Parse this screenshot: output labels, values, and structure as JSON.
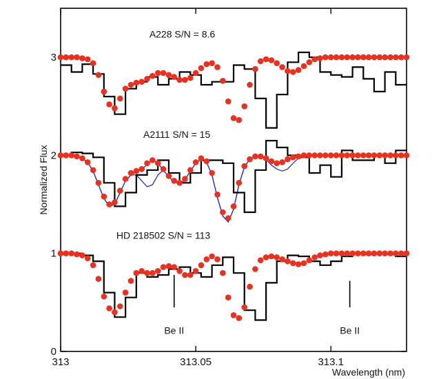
{
  "chart_data": {
    "type": "line",
    "xlabel": "Wavelength (nm)",
    "ylabel": "Normalized Flux",
    "xlim": [
      313.0,
      313.128
    ],
    "ylim": [
      0,
      3.5
    ],
    "grid": false,
    "x_ticks": [
      313.0,
      313.05,
      313.1
    ],
    "x_tick_labels": [
      "313",
      "313.05",
      "313.1"
    ],
    "y_ticks": [
      0,
      1,
      2,
      3
    ],
    "y_tick_labels": [
      "0",
      "1",
      "2",
      "3"
    ],
    "colors": {
      "observed": "#000000",
      "model_dots": "#e8311f",
      "blue_model": "#2a2ad0"
    },
    "annotations": [
      {
        "text": "A228 S/N = 8.6",
        "x": 313.045,
        "y": 3.2
      },
      {
        "text": "A2111 S/N = 15",
        "x": 313.043,
        "y": 2.18
      },
      {
        "text": "HD 218502 S/N = 113",
        "x": 313.038,
        "y": 1.15
      },
      {
        "text": "Be II",
        "x": 313.042,
        "y": 0.18,
        "marker_y": [
          0.45,
          0.78
        ]
      },
      {
        "text": "Be II",
        "x": 313.107,
        "y": 0.18,
        "marker_y": [
          0.45,
          0.72
        ]
      }
    ],
    "series": [
      {
        "name": "A228 observed",
        "style": "step",
        "x": [
          313.0,
          313.004,
          313.008,
          313.012,
          313.016,
          313.02,
          313.024,
          313.028,
          313.032,
          313.036,
          313.04,
          313.044,
          313.048,
          313.052,
          313.056,
          313.06,
          313.064,
          313.068,
          313.072,
          313.076,
          313.08,
          313.084,
          313.088,
          313.092,
          313.096,
          313.1,
          313.104,
          313.108,
          313.112,
          313.116,
          313.12,
          313.124
        ],
        "y": [
          2.92,
          2.85,
          2.93,
          2.83,
          2.6,
          2.42,
          2.68,
          2.75,
          2.8,
          2.72,
          2.78,
          2.85,
          2.82,
          2.72,
          2.75,
          2.75,
          2.92,
          2.88,
          2.58,
          2.28,
          2.62,
          2.95,
          3.05,
          3.0,
          2.85,
          2.82,
          2.8,
          2.9,
          2.78,
          2.65,
          2.85,
          2.72
        ]
      },
      {
        "name": "A228 model",
        "style": "dots",
        "x": [
          313.0,
          313.002,
          313.004,
          313.006,
          313.008,
          313.01,
          313.012,
          313.014,
          313.016,
          313.018,
          313.02,
          313.022,
          313.024,
          313.026,
          313.028,
          313.03,
          313.032,
          313.034,
          313.036,
          313.038,
          313.04,
          313.042,
          313.044,
          313.046,
          313.048,
          313.05,
          313.052,
          313.054,
          313.056,
          313.058,
          313.06,
          313.062,
          313.064,
          313.066,
          313.068,
          313.07,
          313.072,
          313.074,
          313.076,
          313.078,
          313.08,
          313.082,
          313.084,
          313.086,
          313.088,
          313.09,
          313.092,
          313.094,
          313.096,
          313.098,
          313.1,
          313.102,
          313.104,
          313.106,
          313.108,
          313.11,
          313.112,
          313.114,
          313.116,
          313.118,
          313.12,
          313.122,
          313.124,
          313.126,
          313.128
        ],
        "y": [
          3.0,
          3.0,
          3.0,
          3.0,
          2.99,
          2.98,
          2.94,
          2.82,
          2.65,
          2.52,
          2.48,
          2.58,
          2.68,
          2.72,
          2.74,
          2.75,
          2.78,
          2.81,
          2.84,
          2.84,
          2.82,
          2.8,
          2.77,
          2.77,
          2.79,
          2.84,
          2.89,
          2.93,
          2.94,
          2.9,
          2.76,
          2.55,
          2.38,
          2.36,
          2.5,
          2.72,
          2.88,
          2.96,
          2.98,
          2.97,
          2.94,
          2.9,
          2.86,
          2.85,
          2.87,
          2.91,
          2.95,
          2.98,
          2.99,
          3.0,
          3.0,
          3.0,
          3.0,
          3.0,
          3.0,
          3.0,
          3.0,
          3.0,
          3.0,
          3.0,
          3.0,
          3.0,
          3.0,
          3.0,
          3.0
        ]
      },
      {
        "name": "A2111 observed",
        "style": "step",
        "x": [
          313.0,
          313.004,
          313.008,
          313.012,
          313.016,
          313.02,
          313.024,
          313.028,
          313.032,
          313.036,
          313.04,
          313.044,
          313.048,
          313.052,
          313.056,
          313.06,
          313.064,
          313.068,
          313.072,
          313.076,
          313.08,
          313.084,
          313.088,
          313.092,
          313.096,
          313.1,
          313.104,
          313.108,
          313.112,
          313.116,
          313.12,
          313.124
        ],
        "y": [
          2.0,
          2.03,
          2.02,
          1.98,
          1.72,
          1.48,
          1.62,
          1.8,
          1.85,
          1.95,
          1.82,
          1.72,
          1.82,
          1.95,
          1.95,
          1.92,
          1.62,
          1.42,
          1.85,
          2.15,
          2.08,
          2.0,
          1.98,
          1.82,
          1.9,
          1.78,
          2.05,
          1.95,
          1.95,
          2.0,
          1.92,
          2.05
        ]
      },
      {
        "name": "A2111 model",
        "style": "dots",
        "x": [
          313.0,
          313.002,
          313.004,
          313.006,
          313.008,
          313.01,
          313.012,
          313.014,
          313.016,
          313.018,
          313.02,
          313.022,
          313.024,
          313.026,
          313.028,
          313.03,
          313.032,
          313.034,
          313.036,
          313.038,
          313.04,
          313.042,
          313.044,
          313.046,
          313.048,
          313.05,
          313.052,
          313.054,
          313.056,
          313.058,
          313.06,
          313.062,
          313.064,
          313.066,
          313.068,
          313.07,
          313.072,
          313.074,
          313.076,
          313.078,
          313.08,
          313.082,
          313.084,
          313.086,
          313.088,
          313.09,
          313.092,
          313.094,
          313.096,
          313.098,
          313.1,
          313.102,
          313.104,
          313.106,
          313.108,
          313.11,
          313.112,
          313.114,
          313.116,
          313.118,
          313.12,
          313.122,
          313.124,
          313.126,
          313.128
        ],
        "y": [
          2.0,
          2.0,
          2.0,
          1.99,
          1.97,
          1.93,
          1.85,
          1.72,
          1.58,
          1.5,
          1.52,
          1.64,
          1.76,
          1.82,
          1.84,
          1.86,
          1.92,
          1.95,
          1.92,
          1.86,
          1.79,
          1.74,
          1.72,
          1.76,
          1.85,
          1.93,
          1.97,
          1.94,
          1.82,
          1.6,
          1.42,
          1.36,
          1.48,
          1.72,
          1.89,
          1.96,
          1.99,
          1.99,
          1.97,
          1.94,
          1.92,
          1.93,
          1.96,
          1.98,
          1.99,
          2.0,
          2.0,
          2.0,
          2.0,
          2.0,
          2.0,
          2.0,
          2.0,
          2.0,
          2.0,
          2.0,
          2.0,
          2.0,
          2.0,
          2.0,
          2.0,
          2.0,
          2.0,
          2.0,
          2.0
        ]
      },
      {
        "name": "A2111 Be model (shallow)",
        "style": "line",
        "x": [
          313.0,
          313.002,
          313.004,
          313.006,
          313.008,
          313.01,
          313.012,
          313.014,
          313.016,
          313.018,
          313.02,
          313.022,
          313.024,
          313.026,
          313.028,
          313.03,
          313.032,
          313.034,
          313.036,
          313.038,
          313.04,
          313.042,
          313.044,
          313.046,
          313.048,
          313.05,
          313.052,
          313.054,
          313.056,
          313.058,
          313.06,
          313.062,
          313.064,
          313.066,
          313.068,
          313.07,
          313.072,
          313.074,
          313.076,
          313.078,
          313.08,
          313.082,
          313.084,
          313.086,
          313.088,
          313.09,
          313.092,
          313.094,
          313.096,
          313.098,
          313.1,
          313.102,
          313.104,
          313.106,
          313.108,
          313.11,
          313.112,
          313.114,
          313.116,
          313.118,
          313.12,
          313.122,
          313.124,
          313.126,
          313.128
        ],
        "y": [
          2.0,
          2.0,
          2.0,
          1.99,
          1.97,
          1.93,
          1.84,
          1.7,
          1.56,
          1.48,
          1.5,
          1.62,
          1.74,
          1.8,
          1.83,
          1.85,
          1.91,
          1.95,
          1.92,
          1.85,
          1.78,
          1.73,
          1.71,
          1.75,
          1.84,
          1.92,
          1.96,
          1.93,
          1.8,
          1.57,
          1.38,
          1.32,
          1.45,
          1.7,
          1.88,
          1.96,
          1.99,
          1.99,
          1.97,
          1.94,
          1.91,
          1.92,
          1.95,
          1.98,
          1.99,
          2.0,
          2.0,
          2.0,
          2.0,
          2.0,
          2.0,
          2.0,
          2.0,
          2.0,
          2.0,
          2.0,
          2.0,
          2.0,
          2.0,
          2.0,
          2.0,
          2.0,
          2.0,
          2.0,
          2.0
        ]
      },
      {
        "name": "A2111 Be model (deep)",
        "style": "line",
        "x": [
          313.0,
          313.002,
          313.004,
          313.006,
          313.008,
          313.01,
          313.012,
          313.014,
          313.016,
          313.018,
          313.02,
          313.022,
          313.024,
          313.026,
          313.028,
          313.03,
          313.032,
          313.034,
          313.036,
          313.038,
          313.04,
          313.042,
          313.044,
          313.046,
          313.048,
          313.05,
          313.052,
          313.054,
          313.056,
          313.058,
          313.06,
          313.062,
          313.064,
          313.066,
          313.068,
          313.07,
          313.072,
          313.074,
          313.076,
          313.078,
          313.08,
          313.082,
          313.084,
          313.086,
          313.088,
          313.09,
          313.092,
          313.094,
          313.096,
          313.098,
          313.1,
          313.102,
          313.104,
          313.106,
          313.108,
          313.11,
          313.112,
          313.114,
          313.116,
          313.118,
          313.12,
          313.122,
          313.124,
          313.126,
          313.128
        ],
        "y": [
          2.0,
          2.0,
          2.0,
          1.99,
          1.97,
          1.93,
          1.84,
          1.7,
          1.56,
          1.48,
          1.5,
          1.62,
          1.74,
          1.8,
          1.8,
          1.74,
          1.68,
          1.7,
          1.8,
          1.85,
          1.78,
          1.73,
          1.71,
          1.75,
          1.84,
          1.92,
          1.96,
          1.93,
          1.8,
          1.57,
          1.38,
          1.32,
          1.45,
          1.7,
          1.88,
          1.96,
          1.99,
          1.99,
          1.96,
          1.9,
          1.86,
          1.84,
          1.86,
          1.92,
          1.97,
          1.99,
          2.0,
          2.0,
          2.0,
          2.0,
          2.0,
          2.0,
          2.0,
          2.0,
          2.0,
          2.0,
          2.0,
          2.0,
          2.0,
          2.0,
          2.0,
          2.0,
          2.0,
          2.0,
          2.0
        ]
      },
      {
        "name": "HD 218502 observed",
        "style": "step",
        "x": [
          313.0,
          313.004,
          313.008,
          313.012,
          313.016,
          313.02,
          313.024,
          313.028,
          313.032,
          313.036,
          313.04,
          313.044,
          313.048,
          313.052,
          313.056,
          313.06,
          313.064,
          313.068,
          313.072,
          313.076,
          313.08,
          313.084,
          313.088,
          313.092,
          313.096,
          313.1,
          313.104,
          313.108,
          313.112,
          313.116,
          313.12,
          313.124
        ],
        "y": [
          1.0,
          1.0,
          0.98,
          0.92,
          0.6,
          0.35,
          0.55,
          0.8,
          0.76,
          0.78,
          0.84,
          0.86,
          0.8,
          0.76,
          0.88,
          0.96,
          0.8,
          0.42,
          0.32,
          0.7,
          0.92,
          0.98,
          0.97,
          0.92,
          0.88,
          0.92,
          0.97,
          1.0,
          0.99,
          1.0,
          0.99,
          0.97
        ]
      },
      {
        "name": "HD 218502 model",
        "style": "dots",
        "x": [
          313.0,
          313.002,
          313.004,
          313.006,
          313.008,
          313.01,
          313.012,
          313.014,
          313.016,
          313.018,
          313.02,
          313.022,
          313.024,
          313.026,
          313.028,
          313.03,
          313.032,
          313.034,
          313.036,
          313.038,
          313.04,
          313.042,
          313.044,
          313.046,
          313.048,
          313.05,
          313.052,
          313.054,
          313.056,
          313.058,
          313.06,
          313.062,
          313.064,
          313.066,
          313.068,
          313.07,
          313.072,
          313.074,
          313.076,
          313.078,
          313.08,
          313.082,
          313.084,
          313.086,
          313.088,
          313.09,
          313.092,
          313.094,
          313.096,
          313.098,
          313.1,
          313.102,
          313.104,
          313.106,
          313.108,
          313.11,
          313.112,
          313.114,
          313.116,
          313.118,
          313.12,
          313.122,
          313.124,
          313.126,
          313.128
        ],
        "y": [
          1.0,
          1.0,
          1.0,
          0.99,
          0.98,
          0.95,
          0.88,
          0.74,
          0.56,
          0.44,
          0.4,
          0.46,
          0.6,
          0.72,
          0.8,
          0.82,
          0.8,
          0.8,
          0.82,
          0.86,
          0.87,
          0.86,
          0.82,
          0.78,
          0.78,
          0.82,
          0.88,
          0.94,
          0.97,
          0.94,
          0.8,
          0.55,
          0.37,
          0.34,
          0.45,
          0.66,
          0.84,
          0.93,
          0.96,
          0.97,
          0.96,
          0.94,
          0.92,
          0.9,
          0.89,
          0.9,
          0.93,
          0.96,
          0.98,
          0.99,
          1.0,
          1.0,
          1.0,
          1.0,
          1.0,
          1.0,
          1.0,
          1.0,
          1.0,
          1.0,
          1.0,
          1.0,
          1.0,
          1.0,
          1.0
        ]
      }
    ]
  }
}
